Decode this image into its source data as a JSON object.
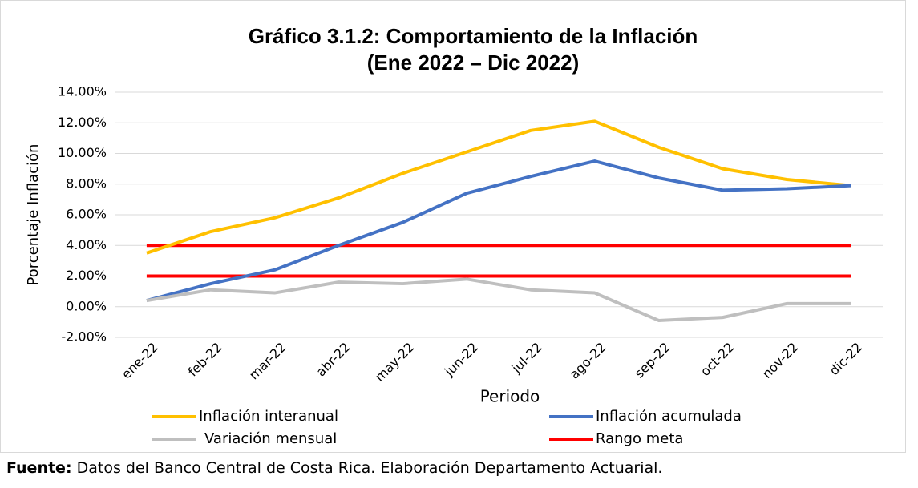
{
  "chart_data": {
    "type": "line",
    "title": [
      "Gráfico 3.1.2: Comportamiento de la Inflación",
      "(Ene 2022 – Dic 2022)"
    ],
    "x_label": "Periodo",
    "y_label": "Porcentaje Inflación",
    "categories": [
      "ene-22",
      "feb-22",
      "mar-22",
      "abr-22",
      "may-22",
      "jun-22",
      "jul-22",
      "ago-22",
      "sep-22",
      "oct-22",
      "nov-22",
      "dic-22"
    ],
    "series": [
      {
        "name": "Inflación interanual",
        "color": "#ffc000",
        "values": [
          3.5,
          4.9,
          5.8,
          7.1,
          8.7,
          10.1,
          11.5,
          12.1,
          10.4,
          9.0,
          8.3,
          7.9
        ]
      },
      {
        "name": "Inflación acumulada",
        "color": "#4472c4",
        "values": [
          0.4,
          1.5,
          2.4,
          4.0,
          5.5,
          7.4,
          8.5,
          9.5,
          8.4,
          7.6,
          7.7,
          7.9
        ]
      },
      {
        "name": "Variación mensual",
        "color": "#bfbfbf",
        "values": [
          0.4,
          1.1,
          0.9,
          1.6,
          1.5,
          1.8,
          1.1,
          0.9,
          -0.9,
          -0.7,
          0.2,
          0.2
        ]
      }
    ],
    "band": {
      "name": "Rango meta",
      "color": "#ff0000",
      "values": [
        2,
        4
      ]
    },
    "ylim": [
      -2,
      14
    ],
    "yticks": [
      {
        "value": -2,
        "label": "-2.00%"
      },
      {
        "value": 0,
        "label": "0.00%"
      },
      {
        "value": 2,
        "label": "2.00%"
      },
      {
        "value": 4,
        "label": "4.00%"
      },
      {
        "value": 6,
        "label": "6.00%"
      },
      {
        "value": 8,
        "label": "8.00%"
      },
      {
        "value": 10,
        "label": "10.00%"
      },
      {
        "value": 12,
        "label": "12.00%"
      },
      {
        "value": 14,
        "label": "14.00%"
      }
    ],
    "grid": true,
    "source": {
      "label": "Fuente:",
      "text": "Datos del Banco Central de Costa Rica. Elaboración Departamento Actuarial."
    }
  }
}
